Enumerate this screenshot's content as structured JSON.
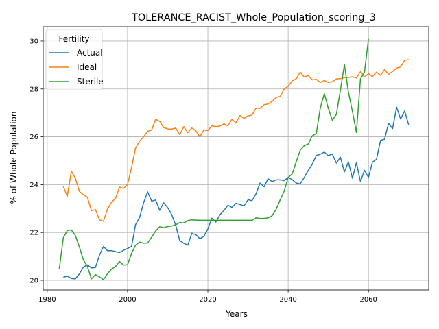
{
  "chart_data": {
    "type": "line",
    "title": "TOLERANCE_RACIST_Whole_Population_scoring_3",
    "xlabel": "Years",
    "ylabel": "% of Whole Population",
    "xlim": [
      1979,
      2075
    ],
    "ylim": [
      19.6,
      30.6
    ],
    "xticks": [
      1980,
      2000,
      2020,
      2040,
      2060
    ],
    "yticks": [
      20,
      22,
      24,
      26,
      28,
      30
    ],
    "grid": true,
    "legend": {
      "title": "Fertility",
      "placement": "top-left"
    },
    "series": [
      {
        "name": "Actual",
        "color": "#1f77b4",
        "x": [
          1984,
          1985,
          1986,
          1987,
          1988,
          1989,
          1990,
          1991,
          1992,
          1993,
          1994,
          1995,
          1996,
          1997,
          1998,
          1999,
          2000,
          2001,
          2002,
          2003,
          2004,
          2005,
          2006,
          2007,
          2008,
          2009,
          2010,
          2011,
          2012,
          2013,
          2014,
          2015,
          2016,
          2017,
          2018,
          2019,
          2020,
          2021,
          2022,
          2023,
          2024,
          2025,
          2026,
          2027,
          2028,
          2029,
          2030,
          2031,
          2032,
          2033,
          2034,
          2035,
          2036,
          2037,
          2038,
          2039,
          2040,
          2041,
          2042,
          2043,
          2044,
          2045,
          2046,
          2047,
          2048,
          2049,
          2050,
          2051,
          2052,
          2053,
          2054,
          2055,
          2056,
          2057,
          2058,
          2059,
          2060,
          2061,
          2062,
          2063,
          2064,
          2065,
          2066,
          2067,
          2068,
          2069,
          2070
        ],
        "values": [
          20.13,
          20.18,
          20.08,
          20.06,
          20.27,
          20.55,
          20.65,
          20.52,
          20.54,
          21.05,
          21.42,
          21.24,
          21.24,
          21.2,
          21.16,
          21.26,
          21.33,
          21.42,
          22.33,
          22.63,
          23.25,
          23.7,
          23.31,
          23.36,
          22.93,
          23.24,
          23.04,
          22.75,
          22.3,
          21.66,
          21.55,
          21.47,
          21.97,
          21.91,
          21.74,
          21.84,
          22.15,
          22.6,
          22.44,
          22.74,
          22.92,
          23.14,
          23.05,
          23.22,
          23.17,
          23.11,
          23.37,
          23.33,
          23.62,
          24.07,
          23.91,
          24.25,
          24.13,
          24.2,
          24.2,
          24.17,
          24.3,
          24.21,
          24.07,
          24.03,
          24.3,
          24.6,
          24.85,
          25.22,
          25.27,
          25.36,
          25.21,
          25.28,
          24.9,
          25.15,
          24.53,
          24.95,
          24.27,
          24.92,
          24.13,
          24.6,
          24.31,
          24.94,
          25.06,
          25.85,
          25.9,
          26.56,
          26.34,
          27.24,
          26.74,
          27.08,
          26.51
        ]
      },
      {
        "name": "Ideal",
        "color": "#ff7f0e",
        "x": [
          1984,
          1985,
          1986,
          1987,
          1988,
          1989,
          1990,
          1991,
          1992,
          1993,
          1994,
          1995,
          1996,
          1997,
          1998,
          1999,
          2000,
          2001,
          2002,
          2003,
          2004,
          2005,
          2006,
          2007,
          2008,
          2009,
          2010,
          2011,
          2012,
          2013,
          2014,
          2015,
          2016,
          2017,
          2018,
          2019,
          2020,
          2021,
          2022,
          2023,
          2024,
          2025,
          2026,
          2027,
          2028,
          2029,
          2030,
          2031,
          2032,
          2033,
          2034,
          2035,
          2036,
          2037,
          2038,
          2039,
          2040,
          2041,
          2042,
          2043,
          2044,
          2045,
          2046,
          2047,
          2048,
          2049,
          2050,
          2051,
          2052,
          2053,
          2054,
          2055,
          2056,
          2057,
          2058,
          2059,
          2060,
          2061,
          2062,
          2063,
          2064,
          2065,
          2066,
          2067,
          2068,
          2069,
          2070
        ],
        "values": [
          23.92,
          23.52,
          24.56,
          24.27,
          23.72,
          23.58,
          23.48,
          22.91,
          22.96,
          22.53,
          22.47,
          22.98,
          23.27,
          23.42,
          23.9,
          23.84,
          24.01,
          24.72,
          25.53,
          25.82,
          26.0,
          26.23,
          26.28,
          26.73,
          26.65,
          26.39,
          26.33,
          26.32,
          26.37,
          26.09,
          26.43,
          26.17,
          26.37,
          26.25,
          26.0,
          26.29,
          26.26,
          26.46,
          26.42,
          26.45,
          26.54,
          26.46,
          26.73,
          26.59,
          26.89,
          26.77,
          26.87,
          26.91,
          27.2,
          27.19,
          27.34,
          27.37,
          27.48,
          27.64,
          27.69,
          28.0,
          28.11,
          28.34,
          28.42,
          28.7,
          28.5,
          28.56,
          28.38,
          28.4,
          28.27,
          28.35,
          28.27,
          28.3,
          28.42,
          28.43,
          28.47,
          28.48,
          28.51,
          28.46,
          28.72,
          28.5,
          28.64,
          28.52,
          28.7,
          28.57,
          28.81,
          28.61,
          28.73,
          28.87,
          28.92,
          29.19,
          29.23
        ]
      },
      {
        "name": "Sterile",
        "color": "#2ca02c",
        "x": [
          1983,
          1984,
          1985,
          1986,
          1987,
          1988,
          1989,
          1990,
          1991,
          1992,
          1993,
          1994,
          1995,
          1996,
          1997,
          1998,
          1999,
          2000,
          2001,
          2002,
          2003,
          2004,
          2005,
          2006,
          2007,
          2008,
          2009,
          2010,
          2011,
          2012,
          2013,
          2014,
          2015,
          2016,
          2017,
          2018,
          2019,
          2020,
          2021,
          2022,
          2023,
          2024,
          2025,
          2026,
          2027,
          2028,
          2029,
          2030,
          2031,
          2032,
          2033,
          2034,
          2035,
          2036,
          2037,
          2038,
          2039,
          2040,
          2041,
          2042,
          2043,
          2044,
          2045,
          2046,
          2047,
          2048,
          2049,
          2050,
          2051,
          2052,
          2053,
          2054,
          2055,
          2056,
          2057,
          2058,
          2059,
          2060
        ],
        "values": [
          20.48,
          21.78,
          22.08,
          22.11,
          21.88,
          21.4,
          20.86,
          20.58,
          20.06,
          20.24,
          20.15,
          20.03,
          20.27,
          20.47,
          20.58,
          20.79,
          20.64,
          20.65,
          21.13,
          21.47,
          21.6,
          21.55,
          21.56,
          21.81,
          22.06,
          22.24,
          22.2,
          22.25,
          22.27,
          22.32,
          22.42,
          22.4,
          22.5,
          22.53,
          22.52,
          22.51,
          22.51,
          22.51,
          22.51,
          22.51,
          22.51,
          22.51,
          22.51,
          22.51,
          22.51,
          22.51,
          22.51,
          22.51,
          22.51,
          22.61,
          22.59,
          22.59,
          22.61,
          22.7,
          22.97,
          23.36,
          23.73,
          24.3,
          24.45,
          24.95,
          25.44,
          25.63,
          25.7,
          26.04,
          26.13,
          27.2,
          27.81,
          27.19,
          26.69,
          26.94,
          27.94,
          29.02,
          27.87,
          27.06,
          26.18,
          28.42,
          28.69,
          30.09
        ]
      }
    ]
  }
}
